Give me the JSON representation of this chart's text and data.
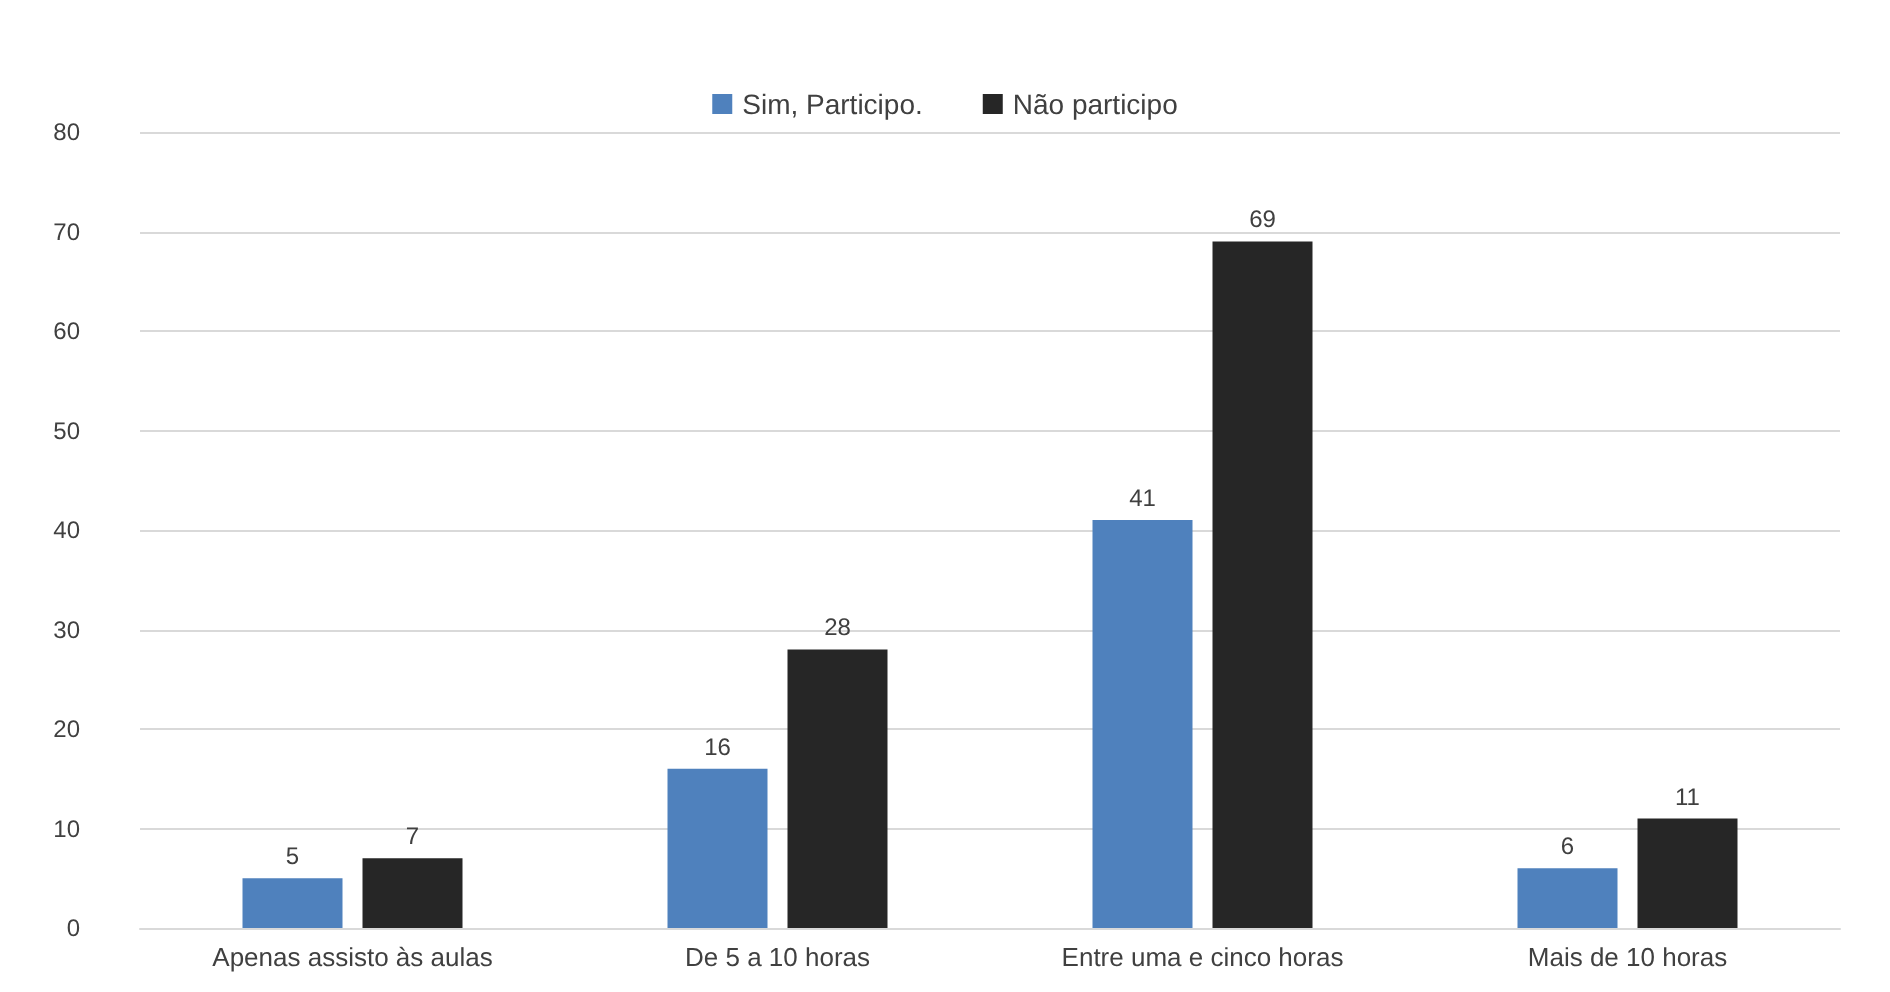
{
  "chart_data": {
    "type": "bar",
    "categories": [
      "Apenas assisto às aulas",
      "De 5 a 10 horas",
      "Entre uma e cinco horas",
      "Mais de 10 horas"
    ],
    "series": [
      {
        "name": "Sim, Participo.",
        "color": "#4f81bd",
        "values": [
          5,
          16,
          41,
          6
        ]
      },
      {
        "name": "Não participo",
        "color": "#262626",
        "values": [
          7,
          28,
          69,
          11
        ]
      }
    ],
    "ylim": [
      0,
      80
    ],
    "yticks": [
      0,
      10,
      20,
      30,
      40,
      50,
      60,
      70,
      80
    ],
    "grid": "y",
    "legend": "top",
    "data_labels": true
  }
}
